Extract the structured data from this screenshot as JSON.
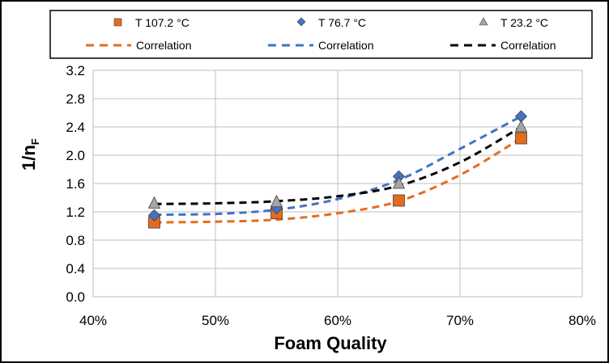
{
  "colors": {
    "orange": "#E46C1E",
    "blue": "#4472C4",
    "gray": "#A5A5A5",
    "black": "#000000",
    "grid": "#BFBFBF"
  },
  "chart_data": {
    "type": "scatter",
    "xlabel": "Foam Quality",
    "ylabel_main": "1/n",
    "ylabel_sub": "F",
    "x_ticks": [
      "40%",
      "50%",
      "60%",
      "70%",
      "80%"
    ],
    "y_ticks": [
      "0.0",
      "0.4",
      "0.8",
      "1.2",
      "1.6",
      "2.0",
      "2.4",
      "2.8",
      "3.2"
    ],
    "xlim": [
      40,
      80
    ],
    "ylim": [
      0,
      3.2
    ],
    "grid": true,
    "legend_position": "top",
    "series": [
      {
        "name": "T  107.2  °C",
        "marker": "square",
        "color": "#E46C1E",
        "x": [
          45,
          55,
          65,
          75
        ],
        "y": [
          1.05,
          1.18,
          1.36,
          2.24
        ]
      },
      {
        "name": "T  76.7  °C",
        "marker": "diamond",
        "color": "#4472C4",
        "x": [
          45,
          55,
          65,
          75
        ],
        "y": [
          1.15,
          1.25,
          1.7,
          2.55
        ]
      },
      {
        "name": "T  23.2  °C",
        "marker": "triangle",
        "color": "#A5A5A5",
        "x": [
          45,
          55,
          65,
          75
        ],
        "y": [
          1.32,
          1.34,
          1.6,
          2.4
        ]
      }
    ],
    "correlations": [
      {
        "name": "Correlation",
        "color": "#E46C1E",
        "x": [
          45,
          50,
          55,
          60,
          65,
          70,
          75
        ],
        "y": [
          1.05,
          1.06,
          1.09,
          1.18,
          1.35,
          1.72,
          2.24
        ]
      },
      {
        "name": "Correlation",
        "color": "#4472C4",
        "x": [
          45,
          50,
          55,
          60,
          65,
          70,
          75
        ],
        "y": [
          1.16,
          1.17,
          1.23,
          1.38,
          1.65,
          2.09,
          2.55
        ]
      },
      {
        "name": "Correlation",
        "color": "#000000",
        "x": [
          45,
          50,
          55,
          60,
          65,
          70,
          75
        ],
        "y": [
          1.31,
          1.32,
          1.35,
          1.42,
          1.57,
          1.9,
          2.4
        ]
      }
    ]
  }
}
